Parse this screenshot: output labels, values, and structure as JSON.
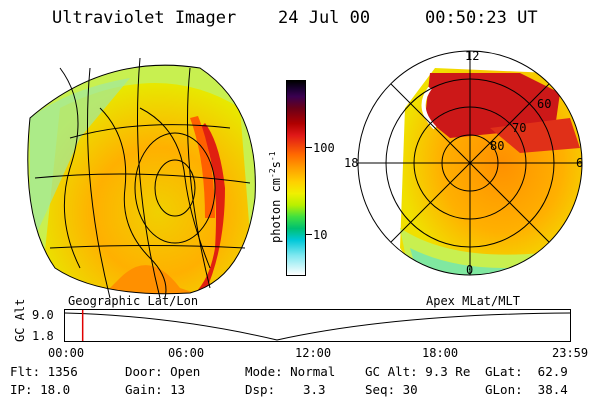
{
  "header": {
    "title": "Ultraviolet Imager",
    "date": "24 Jul 00",
    "time": "00:50:23 UT"
  },
  "colorbar": {
    "units_main": "photon cm",
    "units_sup1": "-2",
    "units_mid": "s",
    "units_sup2": "-1",
    "tick_labels": [
      "100",
      "10"
    ]
  },
  "left_panel": {
    "caption": "Geographic Lat/Lon"
  },
  "right_panel": {
    "caption": "Apex MLat/MLT",
    "mlt_labels": {
      "top": "12",
      "right": "6",
      "bottom": "0",
      "left": "18"
    },
    "mlat_labels": [
      "60",
      "70",
      "80"
    ]
  },
  "timeline": {
    "ylabel": "GC Alt",
    "ytick_labels": [
      "9.0",
      "1.8"
    ],
    "xtick_labels": [
      "00:00",
      "06:00",
      "12:00",
      "18:00",
      "23:59"
    ],
    "current_time_fraction": 0.035,
    "colors": {
      "marker": "#e00000"
    }
  },
  "info": {
    "flt": "Flt: 1356",
    "ip": "IP: 18.0",
    "door": "Door: Open",
    "gain": "Gain: 13",
    "mode": "Mode: Normal",
    "dsp_label": "Dsp:",
    "dsp_value": "3.3",
    "gc_alt": "GC Alt: 9.3 Re",
    "seq": "Seq: 30",
    "glat": "GLat:  62.9",
    "glon": "GLon:  38.4"
  }
}
